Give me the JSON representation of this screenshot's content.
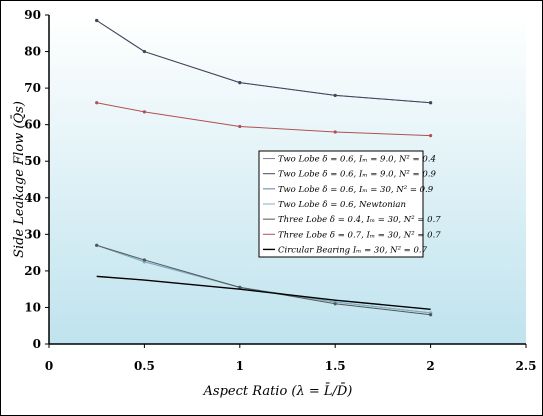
{
  "chart_data": {
    "type": "line",
    "title": "",
    "xlabel": "Aspect Ratio (λ = L̄/D̄)",
    "ylabel": "Side Leakage Flow (Q̄s)",
    "xlim": [
      0,
      2.5
    ],
    "ylim": [
      0,
      90
    ],
    "x_ticks": [
      "0",
      "0.5",
      "1",
      "1.5",
      "2",
      "2.5"
    ],
    "y_ticks": [
      "0",
      "10",
      "20",
      "30",
      "40",
      "50",
      "60",
      "70",
      "80",
      "90"
    ],
    "grid": false,
    "legend_position": "center-right",
    "background": "gradient",
    "x": [
      0.25,
      0.5,
      1,
      1.5,
      2
    ],
    "series": [
      {
        "name": "Two Lobe δ = 0.6, Iₘ = 9.0, N² = 0.4",
        "values": [
          88.5,
          80,
          71.5,
          68,
          66
        ],
        "color": "#7a7a9a"
      },
      {
        "name": "Two Lobe δ = 0.6, Iₘ = 9.0, N² = 0.9",
        "values": [
          88.5,
          80,
          71.5,
          68,
          66
        ],
        "color": "#44445a"
      },
      {
        "name": "Two Lobe δ = 0.6, Iₘ = 30, N² = 0.9",
        "values": [
          27,
          22.5,
          15.5,
          11.5,
          8.5
        ],
        "color": "#5b7fb0"
      },
      {
        "name": "Two Lobe δ = 0.6, Newtonian",
        "values": [
          27,
          22.5,
          15.5,
          11.5,
          8.5
        ],
        "color": "#7fb0c0"
      },
      {
        "name": "Three Lobe δ = 0.4, Iₘ = 30, N² = 0.7",
        "values": [
          27,
          23,
          15.5,
          11,
          8
        ],
        "color": "#555555"
      },
      {
        "name": "Three Lobe δ = 0.7, Iₘ = 30, N² = 0.7",
        "values": [
          66,
          63.5,
          59.5,
          58,
          57
        ],
        "color": "#b05050"
      },
      {
        "name": "Circular Bearing Iₘ = 30, N² = 0.7",
        "values": [
          18.5,
          17.5,
          15,
          12,
          9.5
        ],
        "color": "#000000"
      }
    ]
  }
}
